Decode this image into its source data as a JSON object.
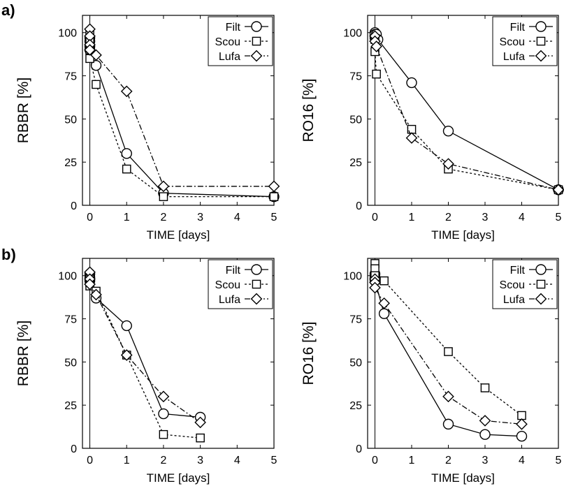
{
  "panel_labels": [
    "a)",
    "b)"
  ],
  "chart_data": [
    {
      "type": "line",
      "panel": "a)",
      "xlabel": "TIME [days]",
      "ylabel": "RBBR [%]",
      "xlim": [
        -0.2,
        5
      ],
      "ylim": [
        0,
        110
      ],
      "xticks": [
        0,
        1,
        2,
        3,
        4,
        5
      ],
      "yticks": [
        0,
        25,
        50,
        75,
        100
      ],
      "legend_position": "top-right",
      "series": [
        {
          "name": "Filt",
          "marker": "circle",
          "line": "solid",
          "x": [
            0,
            0,
            0,
            0,
            0.17,
            1,
            2,
            5
          ],
          "y": [
            97,
            95,
            92,
            90,
            81,
            30,
            7,
            5
          ]
        },
        {
          "name": "Scou",
          "marker": "square",
          "line": "dotted",
          "x": [
            0,
            0,
            0,
            0,
            0.17,
            1,
            2,
            5
          ],
          "y": [
            99,
            95,
            90,
            85,
            70,
            21,
            5,
            5
          ]
        },
        {
          "name": "Lufa",
          "marker": "diamond",
          "line": "dashdot",
          "x": [
            0,
            0,
            0,
            0,
            0.17,
            1,
            2,
            5
          ],
          "y": [
            102,
            98,
            93,
            90,
            87,
            66,
            11,
            11
          ]
        }
      ]
    },
    {
      "type": "line",
      "panel": "a)",
      "xlabel": "TIME [days]",
      "ylabel": "RO16 [%]",
      "xlim": [
        -0.2,
        5
      ],
      "ylim": [
        0,
        110
      ],
      "xticks": [
        0,
        1,
        2,
        3,
        4,
        5
      ],
      "yticks": [
        0,
        25,
        50,
        75,
        100
      ],
      "legend_position": "top-right",
      "series": [
        {
          "name": "Filt",
          "marker": "circle",
          "line": "solid",
          "x": [
            0,
            0,
            0,
            0.04,
            0.08,
            1,
            2,
            5
          ],
          "y": [
            100,
            99,
            97,
            99,
            96,
            71,
            43,
            9
          ]
        },
        {
          "name": "Scou",
          "marker": "square",
          "line": "dotted",
          "x": [
            0,
            0,
            0.04,
            1,
            2,
            5
          ],
          "y": [
            96,
            89,
            76,
            44,
            21,
            9
          ]
        },
        {
          "name": "Lufa",
          "marker": "diamond",
          "line": "dashdot",
          "x": [
            0,
            0,
            0.04,
            1,
            2,
            5
          ],
          "y": [
            98,
            95,
            92,
            39,
            24,
            9
          ]
        }
      ]
    },
    {
      "type": "line",
      "panel": "b)",
      "xlabel": "TIME [days]",
      "ylabel": "RBBR [%]",
      "xlim": [
        -0.2,
        5
      ],
      "ylim": [
        0,
        110
      ],
      "xticks": [
        0,
        1,
        2,
        3,
        4,
        5
      ],
      "yticks": [
        0,
        25,
        50,
        75,
        100
      ],
      "legend_position": "top-right",
      "series": [
        {
          "name": "Filt",
          "marker": "circle",
          "line": "solid",
          "x": [
            0,
            0,
            0,
            0.17,
            1,
            2,
            3
          ],
          "y": [
            101,
            99,
            97,
            87,
            71,
            20,
            18
          ]
        },
        {
          "name": "Scou",
          "marker": "square",
          "line": "dotted",
          "x": [
            0,
            0,
            0,
            0.17,
            1,
            2,
            3
          ],
          "y": [
            98,
            96,
            94,
            91,
            54,
            8,
            6
          ]
        },
        {
          "name": "Lufa",
          "marker": "diamond",
          "line": "dashdot",
          "x": [
            0,
            0,
            0,
            0.17,
            1,
            2,
            3
          ],
          "y": [
            102,
            98,
            95,
            89,
            54,
            30,
            15
          ]
        }
      ]
    },
    {
      "type": "line",
      "panel": "b)",
      "xlabel": "TIME [days]",
      "ylabel": "RO16 [%]",
      "xlim": [
        -0.2,
        5
      ],
      "ylim": [
        0,
        110
      ],
      "xticks": [
        0,
        1,
        2,
        3,
        4,
        5
      ],
      "yticks": [
        0,
        25,
        50,
        75,
        100
      ],
      "legend_position": "top-right",
      "series": [
        {
          "name": "Filt",
          "marker": "circle",
          "line": "solid",
          "x": [
            0,
            0,
            0,
            0.25,
            2,
            3,
            4
          ],
          "y": [
            101,
            99,
            97,
            78,
            14,
            8,
            7
          ]
        },
        {
          "name": "Scou",
          "marker": "square",
          "line": "dotted",
          "x": [
            0,
            0,
            0,
            0.25,
            2,
            3,
            4
          ],
          "y": [
            107,
            104,
            100,
            97,
            56,
            35,
            19
          ]
        },
        {
          "name": "Lufa",
          "marker": "diamond",
          "line": "dashdot",
          "x": [
            0,
            0,
            0,
            0.25,
            2,
            3,
            4
          ],
          "y": [
            98,
            96,
            93,
            84,
            30,
            16,
            14
          ]
        }
      ]
    }
  ]
}
